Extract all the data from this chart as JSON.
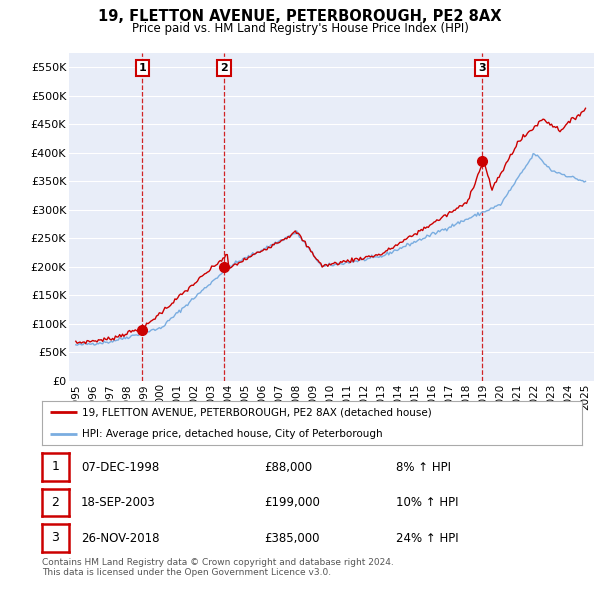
{
  "title_line1": "19, FLETTON AVENUE, PETERBOROUGH, PE2 8AX",
  "title_line2": "Price paid vs. HM Land Registry's House Price Index (HPI)",
  "ylim": [
    0,
    575000
  ],
  "yticks": [
    0,
    50000,
    100000,
    150000,
    200000,
    250000,
    300000,
    350000,
    400000,
    450000,
    500000,
    550000
  ],
  "ytick_labels": [
    "£0",
    "£50K",
    "£100K",
    "£150K",
    "£200K",
    "£250K",
    "£300K",
    "£350K",
    "£400K",
    "£450K",
    "£500K",
    "£550K"
  ],
  "background_color": "#ffffff",
  "plot_bg_color": "#e8edf8",
  "grid_color": "#ffffff",
  "sale_prices": [
    88000,
    199000,
    385000
  ],
  "sale_labels": [
    "1",
    "2",
    "3"
  ],
  "sale_year_floats": [
    1998.92,
    2003.72,
    2018.9
  ],
  "sale_label_date_str": [
    "07-DEC-1998",
    "18-SEP-2003",
    "26-NOV-2018"
  ],
  "sale_price_str": [
    "£88,000",
    "£199,000",
    "£385,000"
  ],
  "sale_hpi_str": [
    "8% ↑ HPI",
    "10% ↑ HPI",
    "24% ↑ HPI"
  ],
  "legend_line1": "19, FLETTON AVENUE, PETERBOROUGH, PE2 8AX (detached house)",
  "legend_line2": "HPI: Average price, detached house, City of Peterborough",
  "line_color_red": "#cc0000",
  "line_color_blue": "#7aade0",
  "vline_color": "#cc0000",
  "footnote": "Contains HM Land Registry data © Crown copyright and database right 2024.\nThis data is licensed under the Open Government Licence v3.0.",
  "xtick_years": [
    1995,
    1996,
    1997,
    1998,
    1999,
    2000,
    2001,
    2002,
    2003,
    2004,
    2005,
    2006,
    2007,
    2008,
    2009,
    2010,
    2011,
    2012,
    2013,
    2014,
    2015,
    2016,
    2017,
    2018,
    2019,
    2020,
    2021,
    2022,
    2023,
    2024,
    2025
  ],
  "xlim_left": 1994.6,
  "xlim_right": 2025.5
}
